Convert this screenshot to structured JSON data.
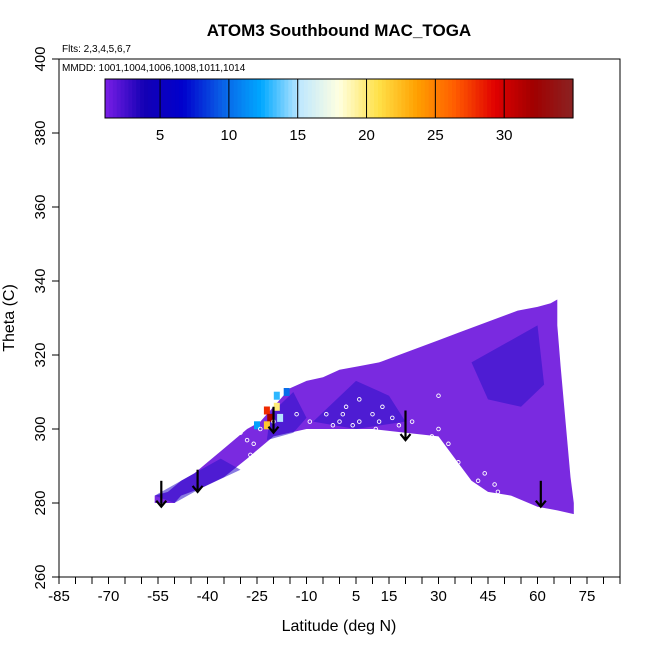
{
  "chart_data": {
    "type": "heatmap",
    "title": "ATOM3 Southbound MAC_TOGA",
    "flights_note": "Flts: 2,3,4,5,6,7",
    "dates_note": "MMDD: 1001,1004,1006,1008,1011,1014",
    "xlabel": "Latitude (deg N)",
    "ylabel": "Theta (C)",
    "xlim": [
      -85,
      85
    ],
    "ylim": [
      260,
      400
    ],
    "x_ticks": [
      -85,
      -70,
      -55,
      -40,
      -25,
      -10,
      5,
      15,
      30,
      45,
      60,
      75
    ],
    "x_minor_step": 5,
    "y_ticks": [
      260,
      280,
      300,
      320,
      340,
      360,
      380,
      400
    ],
    "colorbar": {
      "range": [
        1,
        35
      ],
      "ticks": [
        5,
        10,
        15,
        20,
        25,
        30
      ],
      "stops": [
        "#7a1fe6",
        "#1400b4",
        "#0000cd",
        "#0a60e6",
        "#00a8ff",
        "#bfe8ff",
        "#ffffe0",
        "#ffe24a",
        "#ffa000",
        "#ff5a00",
        "#e00000",
        "#a00000",
        "#8b2222"
      ]
    },
    "field_color": "#7a2ae0",
    "field_outline": [
      [
        -56,
        281
      ],
      [
        -56,
        282
      ],
      [
        -52,
        283
      ],
      [
        -48,
        286
      ],
      [
        -44,
        288
      ],
      [
        -40,
        291
      ],
      [
        -36,
        294
      ],
      [
        -32,
        297
      ],
      [
        -28,
        300
      ],
      [
        -24,
        302
      ],
      [
        -21,
        305
      ],
      [
        -18,
        308
      ],
      [
        -15,
        311
      ],
      [
        -10,
        313
      ],
      [
        -5,
        314
      ],
      [
        0,
        316
      ],
      [
        6,
        317
      ],
      [
        12,
        318
      ],
      [
        18,
        320
      ],
      [
        24,
        322
      ],
      [
        30,
        324
      ],
      [
        36,
        326
      ],
      [
        42,
        328
      ],
      [
        48,
        330
      ],
      [
        54,
        332
      ],
      [
        60,
        333
      ],
      [
        64,
        334
      ],
      [
        66,
        335
      ],
      [
        66,
        328
      ],
      [
        67,
        317
      ],
      [
        68,
        307
      ],
      [
        69,
        297
      ],
      [
        70,
        287
      ],
      [
        71,
        280
      ],
      [
        71,
        277
      ],
      [
        66,
        278
      ],
      [
        60,
        279
      ],
      [
        52,
        282
      ],
      [
        45,
        283
      ],
      [
        40,
        286
      ],
      [
        35,
        292
      ],
      [
        30,
        298
      ],
      [
        20,
        299
      ],
      [
        10,
        300
      ],
      [
        0,
        300
      ],
      [
        -10,
        300
      ],
      [
        -20,
        298
      ],
      [
        -28,
        292
      ],
      [
        -35,
        287
      ],
      [
        -42,
        284
      ],
      [
        -48,
        282
      ],
      [
        -50,
        280
      ],
      [
        -56,
        280
      ]
    ],
    "dark_bands": [
      [
        [
          -21,
          304
        ],
        [
          -14,
          310
        ],
        [
          -10,
          303
        ],
        [
          -14,
          299
        ],
        [
          -22,
          297
        ]
      ],
      [
        [
          -8,
          302
        ],
        [
          5,
          313
        ],
        [
          15,
          309
        ],
        [
          20,
          302
        ],
        [
          5,
          300
        ]
      ],
      [
        [
          40,
          318
        ],
        [
          60,
          328
        ],
        [
          62,
          312
        ],
        [
          55,
          306
        ],
        [
          45,
          308
        ]
      ],
      [
        [
          -56,
          282
        ],
        [
          -44,
          288
        ],
        [
          -36,
          292
        ],
        [
          -30,
          289
        ],
        [
          -42,
          284
        ],
        [
          -50,
          280
        ]
      ]
    ],
    "hot_spot": [
      {
        "lat": -22,
        "theta": 305,
        "value": 28
      },
      {
        "lat": -21,
        "theta": 303,
        "value": 32
      },
      {
        "lat": -22,
        "theta": 301,
        "value": 22
      },
      {
        "lat": -19,
        "theta": 306,
        "value": 20
      },
      {
        "lat": -19,
        "theta": 309,
        "value": 13
      },
      {
        "lat": -16,
        "theta": 310,
        "value": 10
      },
      {
        "lat": -25,
        "theta": 301,
        "value": 12
      },
      {
        "lat": -18,
        "theta": 303,
        "value": 15
      }
    ],
    "arrows": [
      {
        "lat": -54,
        "theta_top": 286,
        "theta_tip": 279
      },
      {
        "lat": -43,
        "theta_top": 289,
        "theta_tip": 283
      },
      {
        "lat": -20,
        "theta_top": 306,
        "theta_tip": 299
      },
      {
        "lat": 20,
        "theta_top": 305,
        "theta_tip": 297
      },
      {
        "lat": 61,
        "theta_top": 286,
        "theta_tip": 279
      }
    ],
    "open_circles": [
      [
        -30,
        299
      ],
      [
        -28,
        297
      ],
      [
        -26,
        296
      ],
      [
        -27,
        293
      ],
      [
        -24,
        300
      ],
      [
        -20,
        302
      ],
      [
        -13,
        304
      ],
      [
        -9,
        302
      ],
      [
        -4,
        304
      ],
      [
        -2,
        301
      ],
      [
        0,
        302
      ],
      [
        1,
        304
      ],
      [
        -1,
        299
      ],
      [
        2,
        306
      ],
      [
        4,
        301
      ],
      [
        6,
        302
      ],
      [
        11,
        300
      ],
      [
        12,
        302
      ],
      [
        13,
        306
      ],
      [
        16,
        303
      ],
      [
        18,
        301
      ],
      [
        22,
        302
      ],
      [
        28,
        298
      ],
      [
        30,
        300
      ],
      [
        30,
        309
      ],
      [
        33,
        296
      ],
      [
        36,
        291
      ],
      [
        42,
        286
      ],
      [
        44,
        288
      ],
      [
        47,
        285
      ],
      [
        48,
        283
      ],
      [
        6,
        308
      ],
      [
        10,
        304
      ]
    ]
  }
}
